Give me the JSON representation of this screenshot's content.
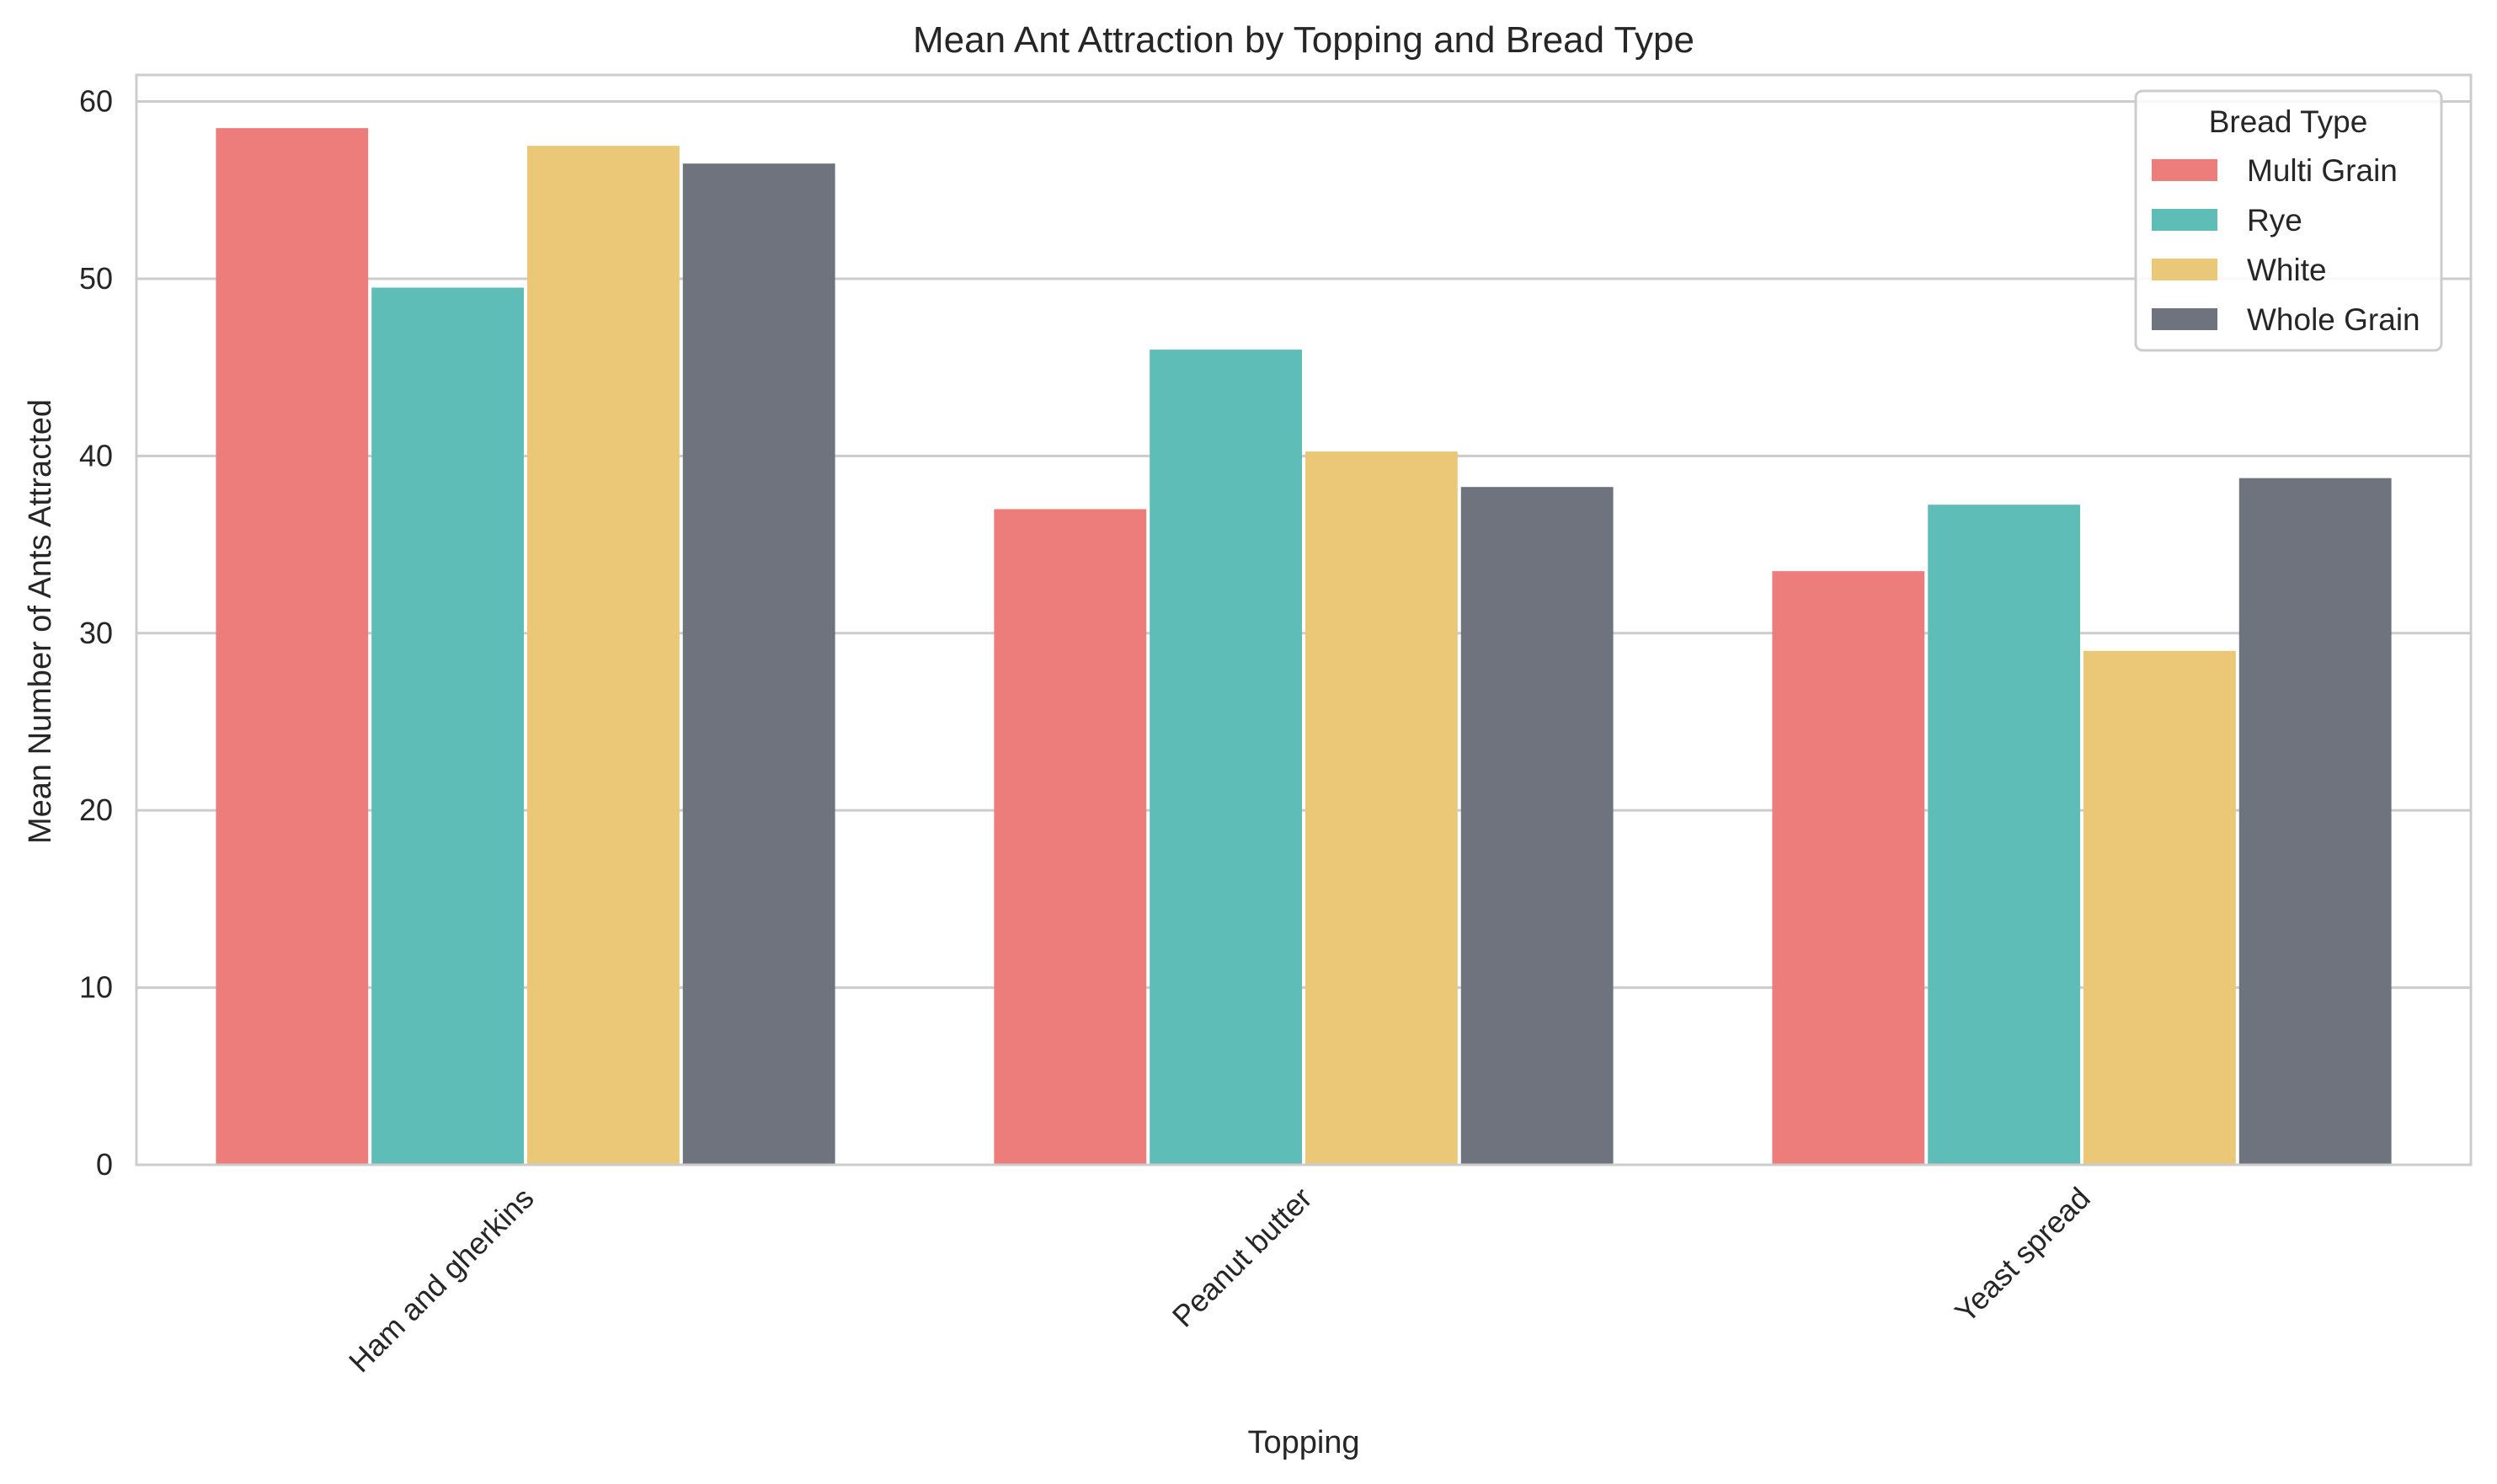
{
  "chart_data": {
    "type": "bar",
    "title": "Mean Ant Attraction by Topping and Bread Type",
    "xlabel": "Topping",
    "ylabel": "Mean Number of Ants Attracted",
    "categories": [
      "Ham and gherkins",
      "Peanut butter",
      "Yeast spread"
    ],
    "ylim": [
      0,
      61.5
    ],
    "yticks": [
      0,
      10,
      20,
      30,
      40,
      50,
      60
    ],
    "ytick_labels": [
      "0",
      "10",
      "20",
      "30",
      "40",
      "50",
      "60"
    ],
    "grid": "horizontal",
    "legend": {
      "title": "Bread Type",
      "placement": "top-right"
    },
    "series": [
      {
        "name": "Multi Grain",
        "color": "#ED7D7B",
        "values": [
          58.5,
          37.0,
          33.5
        ]
      },
      {
        "name": "Rye",
        "color": "#5EBDB6",
        "values": [
          49.5,
          46.0,
          37.25
        ]
      },
      {
        "name": "White",
        "color": "#EBC878",
        "values": [
          57.5,
          40.25,
          29.0
        ]
      },
      {
        "name": "Whole Grain",
        "color": "#6F737D",
        "values": [
          56.5,
          38.25,
          38.75
        ]
      }
    ]
  }
}
